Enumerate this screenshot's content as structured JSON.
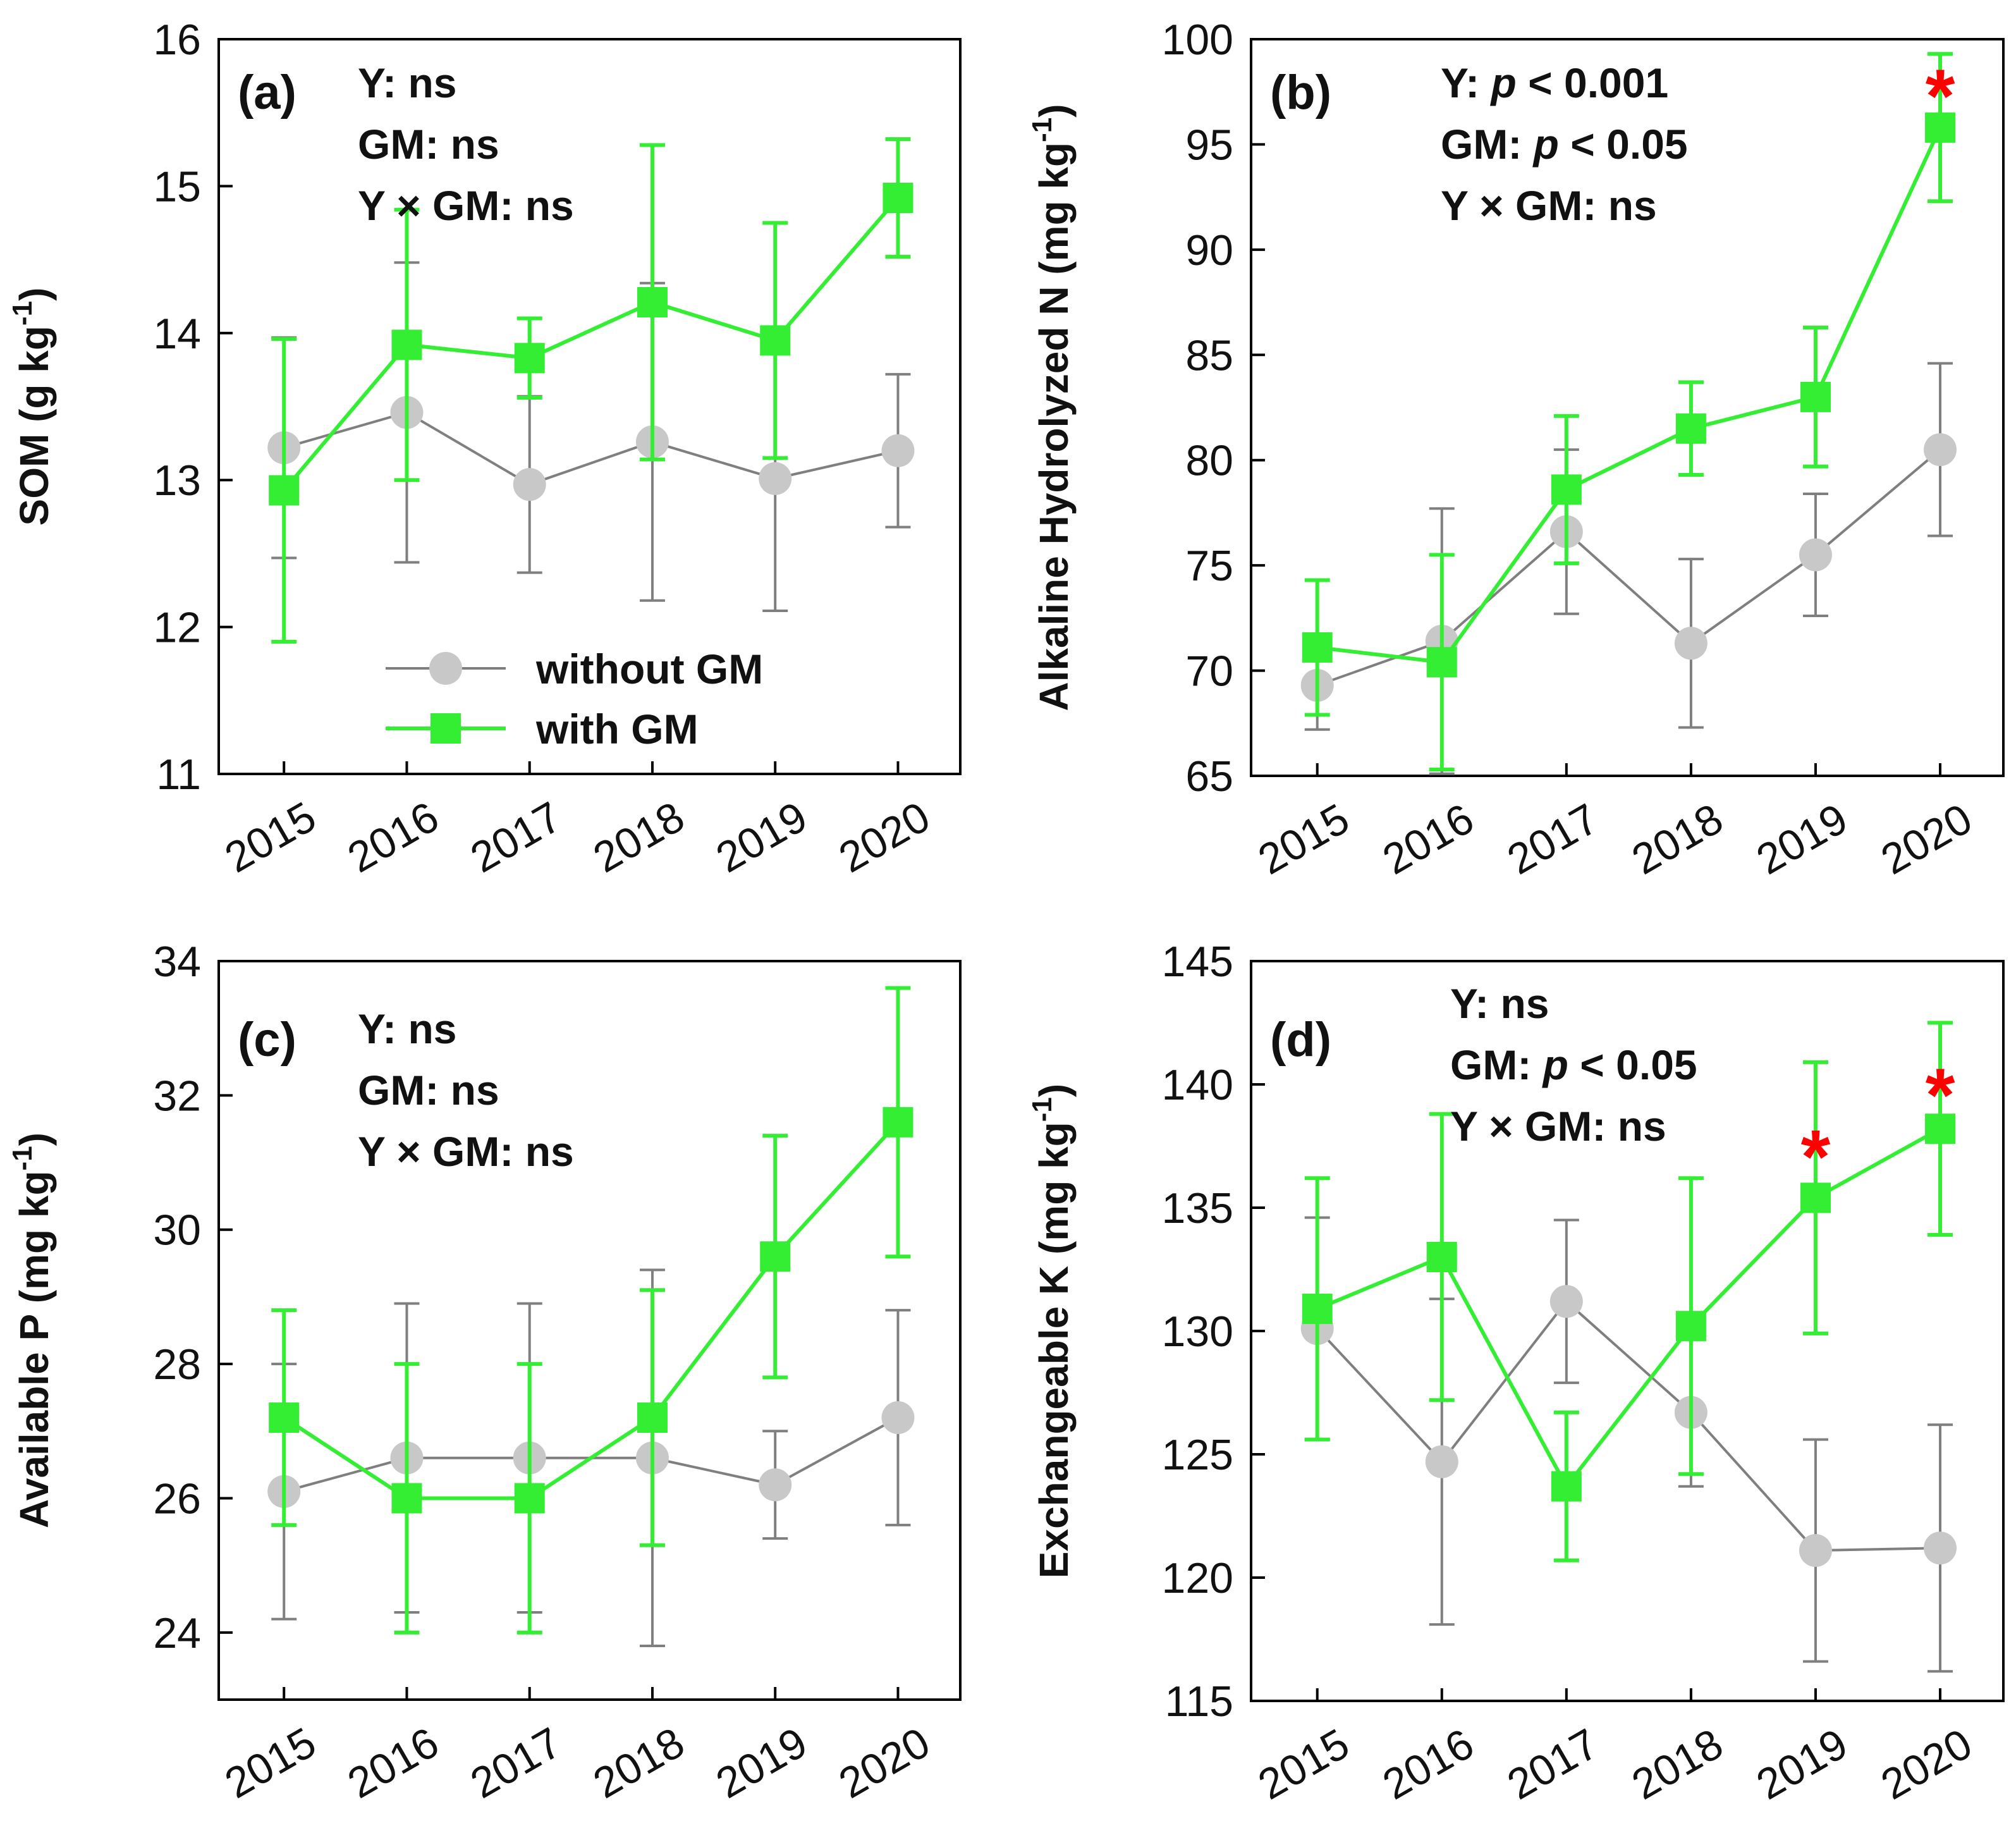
{
  "figure": {
    "legend": {
      "without_gm": "without GM",
      "with_gm": "with GM"
    }
  },
  "colors": {
    "without_gm": "#7f7f7f",
    "without_gm_marker": "#c8c8c8",
    "with_gm": "#33ee33",
    "star": "#ff0000",
    "axis": "#000000"
  },
  "chart_data": [
    {
      "id": "a",
      "type": "line",
      "panel_tag": "(a)",
      "ylabel": "SOM (g kg",
      "ylabel_sup": "-1",
      "ylabel_tail": ")",
      "ylim": [
        11,
        16
      ],
      "yticks": [
        11,
        12,
        13,
        14,
        15,
        16
      ],
      "categories": [
        "2015",
        "2016",
        "2017",
        "2018",
        "2019",
        "2020"
      ],
      "stats": [
        {
          "label": "Y: ",
          "italic": "",
          "value": "ns"
        },
        {
          "label": "GM: ",
          "italic": "",
          "value": "ns"
        },
        {
          "label": "Y × GM: ",
          "italic": "",
          "value": "ns"
        }
      ],
      "series": [
        {
          "name": "without GM",
          "values": [
            13.22,
            13.46,
            12.97,
            13.26,
            13.01,
            13.2
          ],
          "errors": [
            0.75,
            1.02,
            0.6,
            1.08,
            0.9,
            0.52
          ]
        },
        {
          "name": "with GM",
          "values": [
            12.93,
            13.92,
            13.83,
            14.21,
            13.95,
            14.92
          ],
          "errors": [
            1.03,
            0.92,
            0.27,
            1.07,
            0.8,
            0.4
          ]
        }
      ],
      "significance": []
    },
    {
      "id": "b",
      "type": "line",
      "panel_tag": "(b)",
      "ylabel": "Alkaline Hydrolyzed N (mg kg",
      "ylabel_sup": "-1",
      "ylabel_tail": ")",
      "ylim": [
        65,
        100
      ],
      "yticks": [
        65,
        70,
        75,
        80,
        85,
        90,
        95,
        100
      ],
      "categories": [
        "2015",
        "2016",
        "2017",
        "2018",
        "2019",
        "2020"
      ],
      "stats": [
        {
          "label": "Y: ",
          "italic": "p",
          "value": " < 0.001"
        },
        {
          "label": "GM: ",
          "italic": "p",
          "value": " < 0.05"
        },
        {
          "label": "Y × GM: ",
          "italic": "",
          "value": "ns"
        }
      ],
      "series": [
        {
          "name": "without GM",
          "values": [
            69.3,
            71.4,
            76.6,
            71.3,
            75.5,
            80.5
          ],
          "errors": [
            2.1,
            6.3,
            3.9,
            4.0,
            2.9,
            4.1
          ]
        },
        {
          "name": "with GM",
          "values": [
            71.1,
            70.4,
            78.6,
            81.5,
            83.0,
            95.8
          ],
          "errors": [
            3.2,
            5.1,
            3.5,
            2.2,
            3.3,
            3.5
          ]
        }
      ],
      "significance": [
        {
          "year": "2020",
          "y": 97.8,
          "symbol": "*"
        }
      ]
    },
    {
      "id": "c",
      "type": "line",
      "panel_tag": "(c)",
      "ylabel": "Available P (mg kg",
      "ylabel_sup": "-1",
      "ylabel_tail": ")",
      "ylim": [
        23,
        34
      ],
      "yticks": [
        24,
        26,
        28,
        30,
        32,
        34
      ],
      "categories": [
        "2015",
        "2016",
        "2017",
        "2018",
        "2019",
        "2020"
      ],
      "stats": [
        {
          "label": "Y: ",
          "italic": "",
          "value": "ns"
        },
        {
          "label": "GM: ",
          "italic": "",
          "value": "ns"
        },
        {
          "label": "Y × GM: ",
          "italic": "",
          "value": "ns"
        }
      ],
      "series": [
        {
          "name": "without GM",
          "values": [
            26.1,
            26.6,
            26.6,
            26.6,
            26.2,
            27.2
          ],
          "errors": [
            1.9,
            2.3,
            2.3,
            2.8,
            0.8,
            1.6
          ]
        },
        {
          "name": "with GM",
          "values": [
            27.2,
            26.0,
            26.0,
            27.2,
            29.6,
            31.6
          ],
          "errors": [
            1.6,
            2.0,
            2.0,
            1.9,
            1.8,
            2.0
          ]
        }
      ],
      "significance": []
    },
    {
      "id": "d",
      "type": "line",
      "panel_tag": "(d)",
      "ylabel": "Exchangeable K (mg kg",
      "ylabel_sup": "-1",
      "ylabel_tail": ")",
      "ylim": [
        115,
        145
      ],
      "yticks": [
        115,
        120,
        125,
        130,
        135,
        140,
        145
      ],
      "categories": [
        "2015",
        "2016",
        "2017",
        "2018",
        "2019",
        "2020"
      ],
      "stats": [
        {
          "label": "Y: ",
          "italic": "",
          "value": "ns"
        },
        {
          "label": "GM: ",
          "italic": "p",
          "value": " < 0.05"
        },
        {
          "label": "Y × GM: ",
          "italic": "",
          "value": "ns"
        }
      ],
      "series": [
        {
          "name": "without GM",
          "values": [
            130.1,
            124.7,
            131.2,
            126.7,
            121.1,
            121.2
          ],
          "errors": [
            4.5,
            6.6,
            3.3,
            3.0,
            4.5,
            5.0
          ]
        },
        {
          "name": "with GM",
          "values": [
            130.9,
            133.0,
            123.7,
            130.2,
            135.4,
            138.2
          ],
          "errors": [
            5.3,
            5.8,
            3.0,
            6.0,
            5.5,
            4.3
          ]
        }
      ],
      "significance": [
        {
          "year": "2019",
          "y": 137.5,
          "symbol": "*"
        },
        {
          "year": "2020",
          "y": 140.0,
          "symbol": "*"
        }
      ]
    }
  ]
}
